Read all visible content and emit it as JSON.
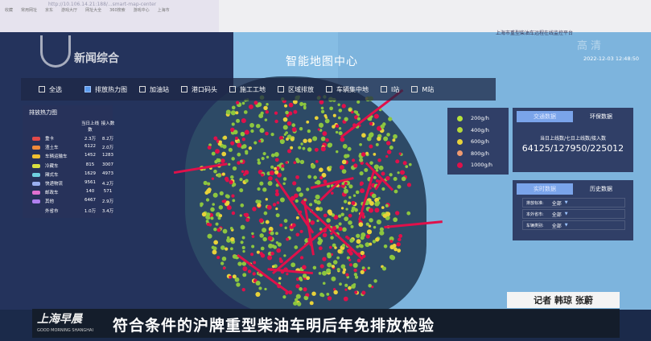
{
  "browser": {
    "url": "http://10.106.14.21:188/...smart-map-center",
    "bookmarks": [
      "收藏",
      "常用网址",
      "京东",
      "游戏大厅",
      "网址大全",
      "360搜索",
      "游戏中心",
      "上海市"
    ]
  },
  "platform_title": "上海市重型柴油车远程在线监控平台",
  "datetime": "2022-12-03 12:48:50",
  "map_title": "智能地图中心",
  "filters": [
    {
      "label": "全选",
      "checked": false
    },
    {
      "label": "排放热力图",
      "checked": true
    },
    {
      "label": "加油站",
      "checked": false
    },
    {
      "label": "港口码头",
      "checked": false
    },
    {
      "label": "施工工地",
      "checked": false
    },
    {
      "label": "区域排放",
      "checked": false
    },
    {
      "label": "车辆集中地",
      "checked": false
    },
    {
      "label": "I站",
      "checked": false
    },
    {
      "label": "M站",
      "checked": false
    }
  ],
  "heat_panel": {
    "title": "排放热力图",
    "col1": "当日上线数",
    "col2": "接入数",
    "rows": [
      {
        "name": "重卡",
        "online": "2.3万",
        "access": "8.2万",
        "color": "#e24a4a"
      },
      {
        "name": "渣土车",
        "online": "6122",
        "access": "2.0万",
        "color": "#f08a3a"
      },
      {
        "name": "车辆运输车",
        "online": "1452",
        "access": "1283",
        "color": "#f0c030"
      },
      {
        "name": "冷藏车",
        "online": "815",
        "access": "3007",
        "color": "#d8e040"
      },
      {
        "name": "厢式车",
        "online": "1629",
        "access": "4973",
        "color": "#6fd0e0"
      },
      {
        "name": "快递物流",
        "online": "9561",
        "access": "4.2万",
        "color": "#9ab0f0"
      },
      {
        "name": "邮政车",
        "online": "140",
        "access": "571",
        "color": "#e070d0"
      },
      {
        "name": "其他",
        "online": "6467",
        "access": "2.9万",
        "color": "#b080f0"
      },
      {
        "name": "外省市",
        "online": "1.0万",
        "access": "3.4万",
        "color": ""
      }
    ]
  },
  "legend": [
    {
      "label": "200g/h",
      "color": "#b6e33a"
    },
    {
      "label": "400g/h",
      "color": "#b6d83a"
    },
    {
      "label": "600g/h",
      "color": "#e8d23a"
    },
    {
      "label": "800g/h",
      "color": "#f09a70"
    },
    {
      "label": "1000g/h",
      "color": "#e0104a"
    }
  ],
  "traffic_panel": {
    "tabs": [
      "交通数据",
      "环保数据"
    ],
    "stat_label": "当日上线数/七日上线数/接入数",
    "stat_value": "64125/127950/225012"
  },
  "realtime_panel": {
    "tabs": [
      "实时数据",
      "历史数据"
    ],
    "selects": [
      {
        "label": "排放标准:",
        "value": "全部"
      },
      {
        "label": "本外省市:",
        "value": "全部"
      },
      {
        "label": "车辆类别:",
        "value": "全部"
      }
    ]
  },
  "broadcast": {
    "channel": "新闻综合",
    "watermark": "高清",
    "program": "上海早晨",
    "program_en": "GOOD MORNING SHANGHAI",
    "reporter": "记者 韩琼 张蔚",
    "headline": "符合条件的沪牌重型柴油车明后年免排放检验"
  }
}
